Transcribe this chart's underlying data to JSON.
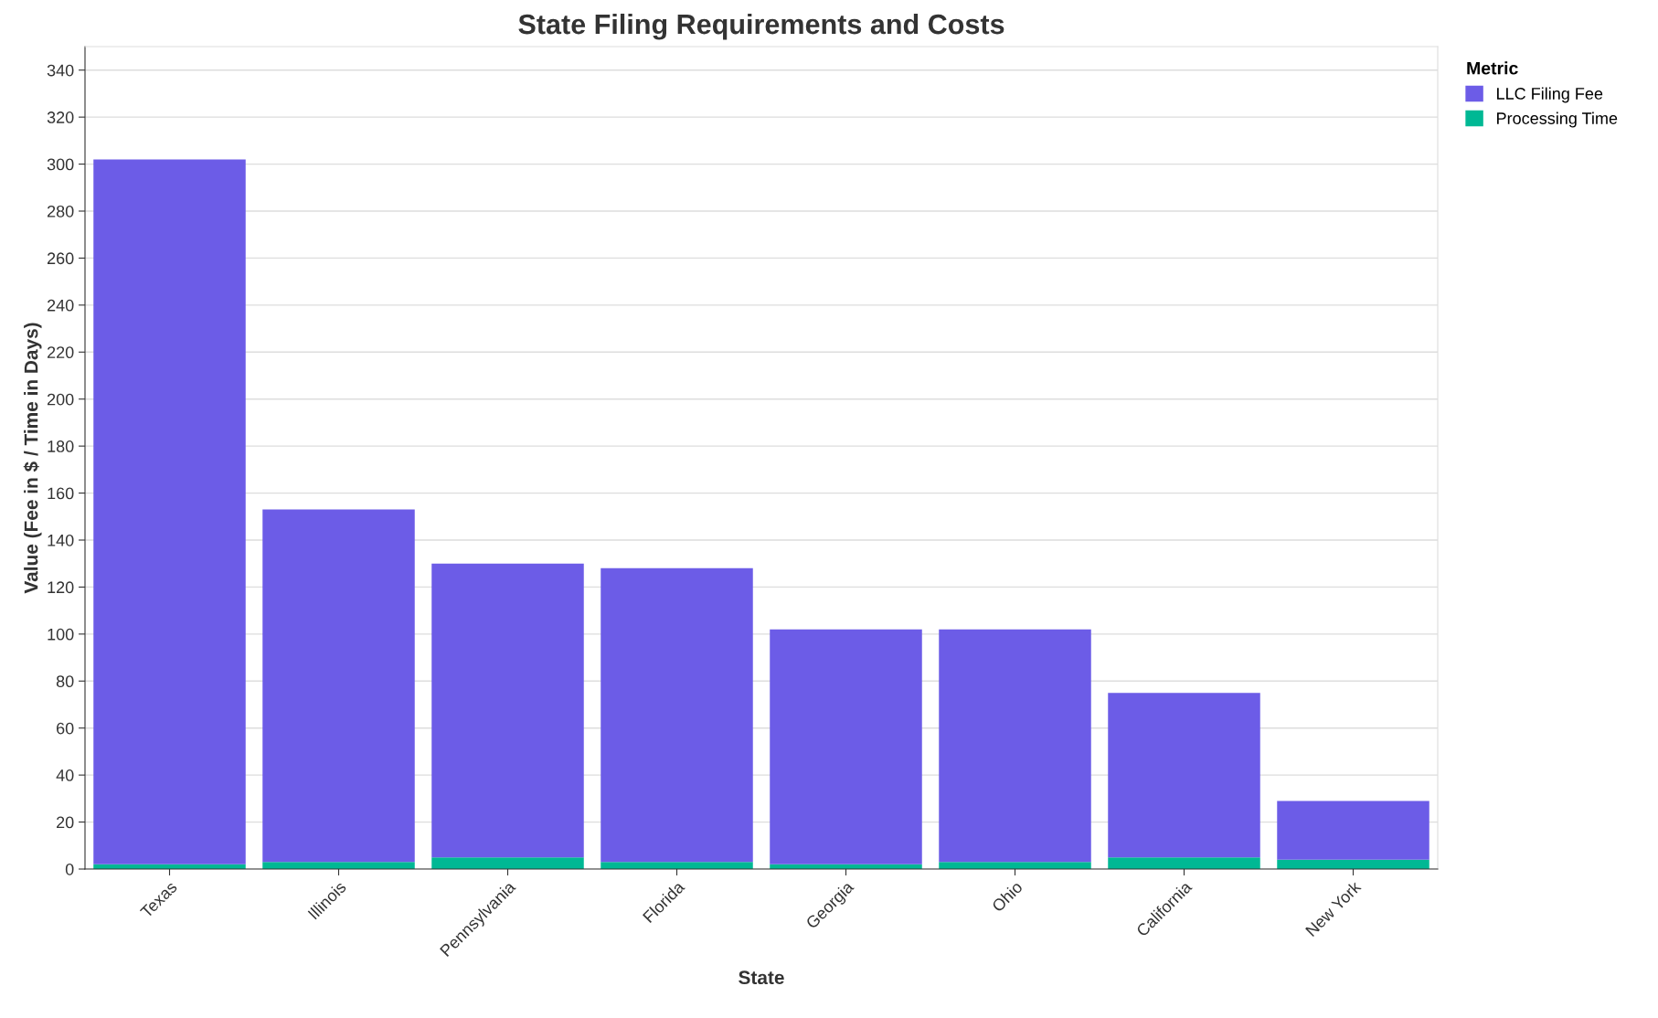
{
  "chart_data": {
    "type": "bar",
    "title": "State Filing Requirements and Costs",
    "xlabel": "State",
    "ylabel": "Value (Fee in $ / Time in Days)",
    "legend_title": "Metric",
    "categories": [
      "Texas",
      "Illinois",
      "Pennsylvania",
      "Florida",
      "Georgia",
      "Ohio",
      "California",
      "New York"
    ],
    "series": [
      {
        "name": "Processing Time",
        "color": "#00b894",
        "values": [
          2,
          3,
          5,
          3,
          2,
          3,
          5,
          4
        ]
      },
      {
        "name": "LLC Filing Fee",
        "color": "#6c5ce7",
        "values": [
          300,
          150,
          125,
          125,
          100,
          99,
          70,
          25
        ]
      }
    ],
    "stacked": true,
    "ylim": [
      0,
      350
    ],
    "yticks": [
      0,
      20,
      40,
      60,
      80,
      100,
      120,
      140,
      160,
      180,
      200,
      220,
      240,
      260,
      280,
      300,
      320,
      340
    ],
    "grid": "y",
    "legend": "top right"
  }
}
